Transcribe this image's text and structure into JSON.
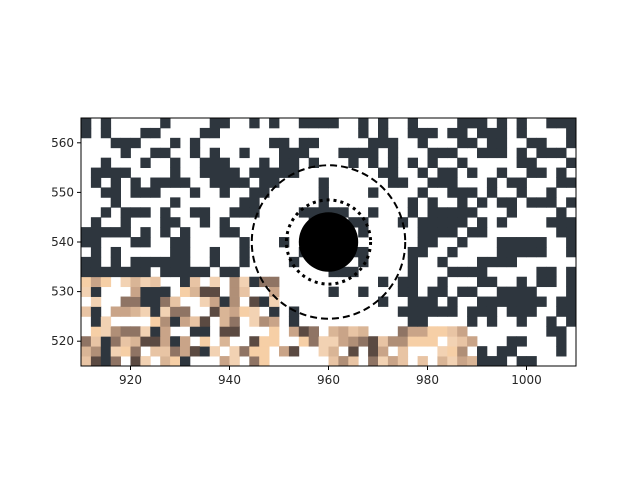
{
  "chart_data": {
    "type": "heatmap",
    "title": "",
    "xlabel": "",
    "ylabel": "",
    "xlim": [
      910,
      1010
    ],
    "ylim": [
      515,
      565
    ],
    "x_ticks": [
      920,
      940,
      960,
      980,
      1000
    ],
    "y_ticks": [
      520,
      530,
      540,
      550,
      560
    ],
    "x_tick_labels": [
      "920",
      "940",
      "960",
      "980",
      "1000"
    ],
    "y_tick_labels": [
      "520",
      "530",
      "540",
      "550",
      "560"
    ],
    "pixel_size": 2,
    "grid": false,
    "cell_colors": {
      "dark": "#2e363e",
      "light": "#ffffff",
      "skin_tones": [
        "#f6cfa6",
        "#f2d2b3",
        "#e8c4a4",
        "#d9b596",
        "#c9a488",
        "#b08f77",
        "#8f7464",
        "#5b4a42"
      ]
    },
    "skin_region": "lower-left",
    "annotations": [
      {
        "shape": "filled-circle",
        "center": [
          960,
          540
        ],
        "radius": 6,
        "color": "#000000"
      },
      {
        "shape": "dotted-ring",
        "center": [
          960,
          540
        ],
        "radius": 8.5,
        "color": "#000000"
      },
      {
        "shape": "dashed-ring",
        "center": [
          960,
          540
        ],
        "radius": 15.5,
        "color": "#000000"
      }
    ]
  }
}
